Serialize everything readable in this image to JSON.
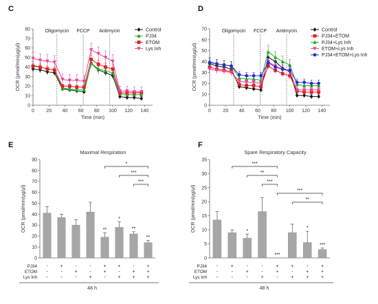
{
  "chart_data": [
    {
      "panel": "C",
      "type": "line",
      "title": "",
      "xlabel": "Time (min)",
      "ylabel": "OCR (pmol/min/µg/µl)",
      "xlim": [
        0,
        150
      ],
      "ylim": [
        0,
        80
      ],
      "xticks": [
        0,
        20,
        40,
        60,
        80,
        100,
        120,
        140
      ],
      "yticks": [
        0,
        10,
        20,
        30,
        40,
        50,
        60,
        70,
        80
      ],
      "annotations": [
        {
          "label": "Oligomycin",
          "x": 30
        },
        {
          "label": "FCCP",
          "x": 63
        },
        {
          "label": "Antimycin",
          "x": 96
        }
      ],
      "legend_position": "top-right",
      "x": [
        0,
        9,
        18,
        27,
        37,
        46,
        55,
        64,
        73,
        82,
        91,
        100,
        109,
        118,
        127,
        136
      ],
      "series": [
        {
          "name": "Control",
          "color": "#111111",
          "marker": "diamond",
          "values": [
            38,
            37,
            35,
            34,
            17,
            16,
            15,
            14,
            44,
            37,
            34,
            31,
            9,
            8,
            8,
            7
          ],
          "errors": [
            3,
            3,
            3,
            3,
            2,
            2,
            2,
            2,
            4,
            4,
            3,
            3,
            2,
            2,
            2,
            2
          ]
        },
        {
          "name": "PJ34",
          "color": "#22aa22",
          "marker": "triangle",
          "values": [
            42,
            40,
            38,
            37,
            18,
            17,
            16,
            16,
            44,
            38,
            36,
            34,
            12,
            11,
            11,
            11
          ],
          "errors": [
            4,
            4,
            3,
            3,
            3,
            3,
            2,
            2,
            4,
            4,
            4,
            4,
            2,
            2,
            2,
            2
          ]
        },
        {
          "name": "ETOM",
          "color": "#e02020",
          "marker": "square",
          "values": [
            41,
            40,
            38,
            37,
            20,
            20,
            19,
            19,
            48,
            43,
            40,
            38,
            13,
            13,
            13,
            13
          ],
          "errors": [
            3,
            3,
            3,
            3,
            2,
            2,
            2,
            2,
            4,
            4,
            4,
            4,
            2,
            2,
            2,
            2
          ]
        },
        {
          "name": "Lys Inh",
          "color": "#e8449a",
          "marker": "triangle-down",
          "values": [
            49,
            47,
            46,
            45,
            27,
            26,
            26,
            25,
            58,
            54,
            50,
            46,
            15,
            15,
            14,
            14
          ],
          "errors": [
            7,
            7,
            7,
            7,
            6,
            6,
            6,
            6,
            7,
            7,
            7,
            7,
            5,
            5,
            5,
            5
          ]
        }
      ]
    },
    {
      "panel": "D",
      "type": "line",
      "title": "",
      "xlabel": "Time (min)",
      "ylabel": "OCR (pmol/min/µg/µl)",
      "xlim": [
        0,
        150
      ],
      "ylim": [
        0,
        70
      ],
      "xticks": [
        0,
        20,
        40,
        60,
        80,
        100,
        120,
        140
      ],
      "yticks": [
        0,
        10,
        20,
        30,
        40,
        50,
        60,
        70
      ],
      "annotations": [
        {
          "label": "Oligomycin",
          "x": 30
        },
        {
          "label": "FCCP",
          "x": 63
        },
        {
          "label": "Antimycin",
          "x": 96
        }
      ],
      "legend_position": "top-right",
      "x": [
        0,
        9,
        18,
        27,
        37,
        46,
        55,
        64,
        73,
        82,
        91,
        100,
        109,
        118,
        127,
        136
      ],
      "series": [
        {
          "name": "Control",
          "color": "#111111",
          "marker": "diamond",
          "values": [
            38,
            36,
            35,
            33,
            17,
            16,
            15,
            14,
            44,
            40,
            34,
            31,
            9,
            9,
            8,
            8
          ],
          "errors": [
            3,
            3,
            3,
            3,
            2,
            2,
            2,
            2,
            4,
            4,
            3,
            3,
            2,
            2,
            2,
            2
          ]
        },
        {
          "name": "PJ34+ETOM",
          "color": "#e02020",
          "marker": "square",
          "values": [
            35,
            33,
            32,
            31,
            19,
            18,
            18,
            17,
            36,
            32,
            29,
            27,
            13,
            12,
            12,
            12
          ],
          "errors": [
            3,
            3,
            3,
            3,
            2,
            2,
            2,
            2,
            3,
            3,
            3,
            3,
            2,
            2,
            2,
            2
          ]
        },
        {
          "name": "PJ34+Lys Inh",
          "color": "#22aa22",
          "marker": "triangle",
          "values": [
            40,
            38,
            37,
            36,
            25,
            24,
            24,
            23,
            49,
            44,
            40,
            37,
            19,
            18,
            18,
            18
          ],
          "errors": [
            4,
            4,
            4,
            4,
            3,
            3,
            3,
            3,
            6,
            5,
            5,
            5,
            3,
            3,
            3,
            3
          ]
        },
        {
          "name": "ETOM+Lys Inh",
          "color": "#e8449a",
          "marker": "triangle-down",
          "values": [
            33,
            32,
            31,
            30,
            22,
            21,
            21,
            20,
            40,
            36,
            33,
            31,
            14,
            14,
            14,
            14
          ],
          "errors": [
            3,
            3,
            3,
            3,
            2,
            2,
            2,
            2,
            4,
            4,
            4,
            4,
            2,
            2,
            2,
            2
          ]
        },
        {
          "name": "PJ34+ETOM+Lys Inh",
          "color": "#2a2ad0",
          "marker": "circle",
          "values": [
            39,
            38,
            37,
            36,
            28,
            27,
            27,
            27,
            39,
            35,
            33,
            32,
            21,
            21,
            20,
            20
          ],
          "errors": [
            4,
            4,
            4,
            4,
            3,
            3,
            3,
            3,
            5,
            5,
            4,
            4,
            3,
            3,
            3,
            3
          ]
        }
      ]
    },
    {
      "panel": "E",
      "type": "bar",
      "title": "Maximal Respiration",
      "xlabel": "48 h",
      "ylabel": "OCR (pmol/min/µg/µl)",
      "ylim": [
        0,
        90
      ],
      "yticks": [
        0,
        10,
        20,
        30,
        40,
        50,
        60,
        70,
        80,
        90
      ],
      "values": [
        41,
        37,
        30,
        42,
        19,
        28,
        22,
        14
      ],
      "errors": [
        6,
        3,
        5,
        9,
        4,
        5,
        2,
        2
      ],
      "stars": [
        "",
        "",
        "",
        "",
        "**",
        "*",
        "**",
        "**"
      ],
      "condition_labels": [
        "PJ34",
        "ETOM",
        "Lys Inh"
      ],
      "conditions": [
        [
          "-",
          "+",
          "-",
          "-",
          "+",
          "+",
          "-",
          "+"
        ],
        [
          "-",
          "-",
          "+",
          "-",
          "+",
          "-",
          "+",
          "+"
        ],
        [
          "-",
          "-",
          "-",
          "+",
          "-",
          "+",
          "+",
          "+"
        ]
      ],
      "brackets": [
        {
          "from": 4,
          "to": 7,
          "label": "*"
        },
        {
          "from": 5,
          "to": 7,
          "label": "***"
        },
        {
          "from": 6,
          "to": 7,
          "label": "***"
        }
      ]
    },
    {
      "panel": "F",
      "type": "bar",
      "title": "Spare Respiratory Capacity",
      "xlabel": "48 h",
      "ylabel": "OCR (pmol/min/µg/µl)",
      "ylim": [
        0,
        35
      ],
      "yticks": [
        0,
        5,
        10,
        15,
        20,
        25,
        30,
        35
      ],
      "values": [
        13.5,
        9,
        7,
        16.5,
        0,
        9,
        5.5,
        3
      ],
      "errors": [
        3,
        1,
        1.5,
        5,
        0,
        3,
        4,
        0.5
      ],
      "stars": [
        "",
        "",
        "*",
        "",
        "***",
        "",
        "*",
        "***"
      ],
      "condition_labels": [
        "PJ34",
        "ETOM",
        "Lys Inh"
      ],
      "conditions": [
        [
          "-",
          "+",
          "-",
          "-",
          "+",
          "+",
          "-",
          "+"
        ],
        [
          "-",
          "-",
          "+",
          "-",
          "+",
          "-",
          "+",
          "+"
        ],
        [
          "-",
          "-",
          "-",
          "+",
          "-",
          "+",
          "+",
          "+"
        ]
      ],
      "brackets": [
        {
          "from": 1,
          "to": 4,
          "label": "***"
        },
        {
          "from": 2,
          "to": 4,
          "label": "**"
        },
        {
          "from": 3,
          "to": 4,
          "label": "***"
        },
        {
          "from": 4,
          "to": 7,
          "label": "***"
        },
        {
          "from": 5,
          "to": 7,
          "label": "**"
        }
      ]
    }
  ]
}
